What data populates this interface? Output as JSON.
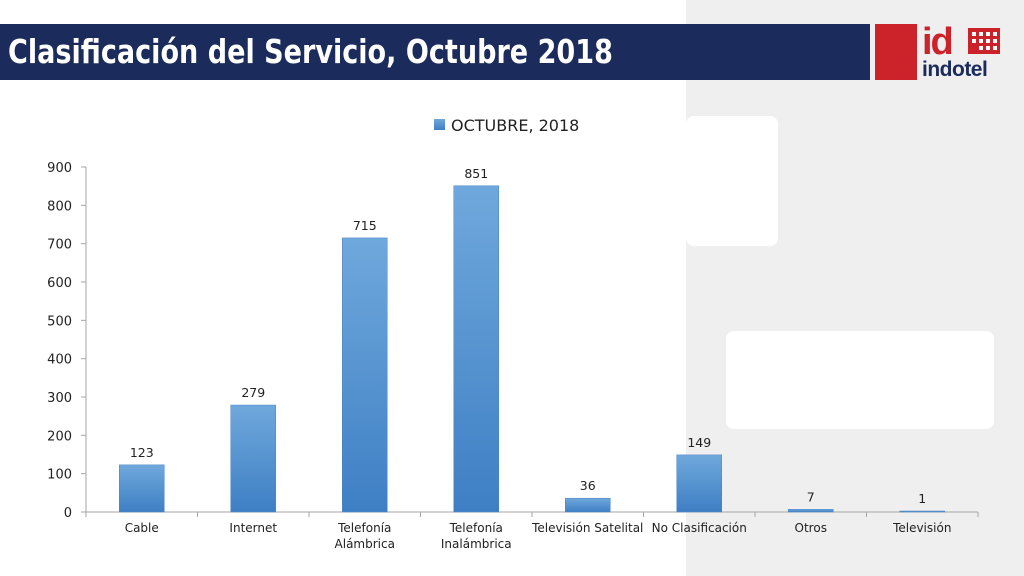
{
  "header": {
    "title": "Clasificación del Servicio, Octubre 2018"
  },
  "logo": {
    "mark": "id",
    "name": "indotel",
    "colors": {
      "red": "#cc2229",
      "navy": "#1b2b5b"
    }
  },
  "chart_data": {
    "type": "bar",
    "categories": [
      "Cable",
      "Internet",
      "Telefonía Alámbrica",
      "Telefonía Inalámbrica",
      "Televisión Satelital",
      "No Clasificación",
      "Otros",
      "Televisión"
    ],
    "category_lines": [
      [
        "Cable"
      ],
      [
        "Internet"
      ],
      [
        "Telefonía",
        "Alámbrica"
      ],
      [
        "Telefonía",
        "Inalámbrica"
      ],
      [
        "Televisión Satelital"
      ],
      [
        "No Clasificación"
      ],
      [
        "Otros"
      ],
      [
        "Televisión"
      ]
    ],
    "series": [
      {
        "name": "OCTUBRE, 2018",
        "values": [
          123,
          279,
          715,
          851,
          36,
          149,
          7,
          1
        ],
        "color": "#5b9bd5"
      }
    ],
    "ylim": [
      0,
      900
    ],
    "yticks": [
      0,
      100,
      200,
      300,
      400,
      500,
      600,
      700,
      800,
      900
    ],
    "grid": false,
    "legend": "top",
    "data_labels": true
  }
}
